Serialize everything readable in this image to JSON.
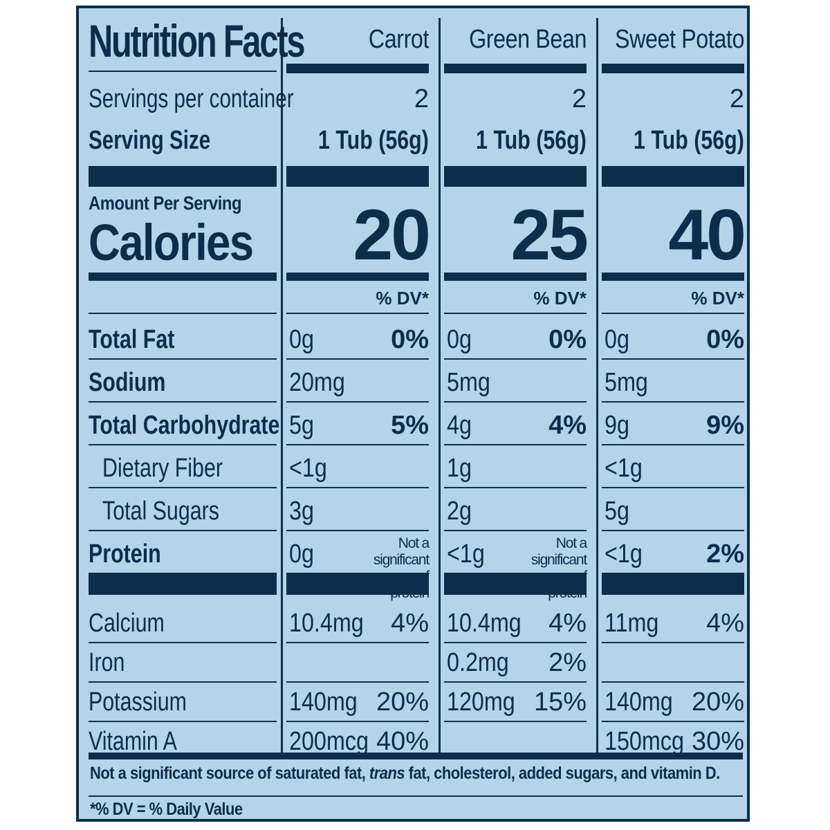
{
  "title": "Nutrition Facts",
  "columns": [
    "Carrot",
    "Green Bean",
    "Sweet Potato"
  ],
  "servings_label": "Servings per container",
  "serving_size_label": "Serving Size",
  "servings": [
    "2",
    "2",
    "2"
  ],
  "serving_sizes": [
    "1 Tub (56g)",
    "1 Tub (56g)",
    "1 Tub (56g)"
  ],
  "amount_per_serving": "Amount Per Serving",
  "calories_label": "Calories",
  "calories": [
    "20",
    "25",
    "40"
  ],
  "dv_header": "% DV*",
  "nutrients": [
    {
      "label": "Total Fat",
      "bold": true,
      "indent": false,
      "values": [
        {
          "amt": "0g",
          "dv": "0%"
        },
        {
          "amt": "0g",
          "dv": "0%"
        },
        {
          "amt": "0g",
          "dv": "0%"
        }
      ]
    },
    {
      "label": "Sodium",
      "bold": true,
      "indent": false,
      "values": [
        {
          "amt": "20mg",
          "dv": ""
        },
        {
          "amt": "5mg",
          "dv": ""
        },
        {
          "amt": "5mg",
          "dv": ""
        }
      ]
    },
    {
      "label": "Total Carbohydrate",
      "bold": true,
      "indent": false,
      "values": [
        {
          "amt": "5g",
          "dv": "5%"
        },
        {
          "amt": "4g",
          "dv": "4%"
        },
        {
          "amt": "9g",
          "dv": "9%"
        }
      ]
    },
    {
      "label": "Dietary Fiber",
      "bold": false,
      "indent": true,
      "values": [
        {
          "amt": "<1g",
          "dv": ""
        },
        {
          "amt": "1g",
          "dv": ""
        },
        {
          "amt": "<1g",
          "dv": ""
        }
      ]
    },
    {
      "label": "Total Sugars",
      "bold": false,
      "indent": true,
      "values": [
        {
          "amt": "3g",
          "dv": ""
        },
        {
          "amt": "2g",
          "dv": ""
        },
        {
          "amt": "5g",
          "dv": ""
        }
      ]
    },
    {
      "label": "Protein",
      "bold": true,
      "indent": false,
      "values": [
        {
          "amt": "0g",
          "dv": "",
          "note": "Not a significant source of protein"
        },
        {
          "amt": "<1g",
          "dv": "",
          "note": "Not a significant source of protein"
        },
        {
          "amt": "<1g",
          "dv": "2%"
        }
      ]
    }
  ],
  "minerals": [
    {
      "label": "Calcium",
      "values": [
        {
          "amt": "10.4mg",
          "dv": "4%"
        },
        {
          "amt": "10.4mg",
          "dv": "4%"
        },
        {
          "amt": "11mg",
          "dv": "4%"
        }
      ]
    },
    {
      "label": "Iron",
      "values": [
        {
          "amt": "",
          "dv": ""
        },
        {
          "amt": "0.2mg",
          "dv": "2%"
        },
        {
          "amt": "",
          "dv": ""
        }
      ]
    },
    {
      "label": "Potassium",
      "values": [
        {
          "amt": "140mg",
          "dv": "20%"
        },
        {
          "amt": "120mg",
          "dv": "15%"
        },
        {
          "amt": "140mg",
          "dv": "20%"
        }
      ]
    },
    {
      "label": "Vitamin A",
      "values": [
        {
          "amt": "200mcg",
          "dv": "40%"
        },
        {
          "amt": "",
          "dv": ""
        },
        {
          "amt": "150mcg",
          "dv": "30%"
        }
      ]
    }
  ],
  "footnote_prefix": "Not a significant source of saturated fat, ",
  "footnote_italic": "trans",
  "footnote_suffix": " fat, cholesterol, added sugars, and vitamin D.",
  "dv_legend": "*% DV = % Daily Value",
  "colors": {
    "background": "#b5d4ea",
    "ink": "#0d2d4c"
  }
}
